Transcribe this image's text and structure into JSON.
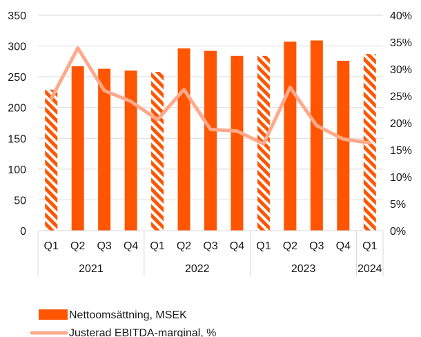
{
  "chart_data": {
    "type": "bar",
    "title": "",
    "x": [
      {
        "quarter": "Q1",
        "year": "2021"
      },
      {
        "quarter": "Q2",
        "year": "2021"
      },
      {
        "quarter": "Q3",
        "year": "2021"
      },
      {
        "quarter": "Q4",
        "year": "2021"
      },
      {
        "quarter": "Q1",
        "year": "2022"
      },
      {
        "quarter": "Q2",
        "year": "2022"
      },
      {
        "quarter": "Q3",
        "year": "2022"
      },
      {
        "quarter": "Q4",
        "year": "2022"
      },
      {
        "quarter": "Q1",
        "year": "2023"
      },
      {
        "quarter": "Q2",
        "year": "2023"
      },
      {
        "quarter": "Q3",
        "year": "2023"
      },
      {
        "quarter": "Q4",
        "year": "2023"
      },
      {
        "quarter": "Q1",
        "year": "2024"
      }
    ],
    "year_groups": [
      {
        "label": "2021",
        "count": 4
      },
      {
        "label": "2022",
        "count": 4
      },
      {
        "label": "2023",
        "count": 4
      },
      {
        "label": "2024",
        "count": 1
      }
    ],
    "series": [
      {
        "name": "Nettoomsättning, MSEK",
        "type": "bar",
        "axis": "left",
        "color": "#ff5500",
        "hatched": [
          true,
          false,
          false,
          false,
          true,
          false,
          false,
          false,
          true,
          false,
          false,
          false,
          true
        ],
        "values": [
          229,
          267,
          263,
          260,
          258,
          296,
          292,
          284,
          284,
          307,
          309,
          276,
          287
        ]
      },
      {
        "name": "Justerad EBITDA-marginal, %",
        "type": "line",
        "axis": "right",
        "color": "#ffa98a",
        "values": [
          24.5,
          33.9,
          26.0,
          24.0,
          20.6,
          26.2,
          18.8,
          18.5,
          16.1,
          26.6,
          19.5,
          17.0,
          16.3
        ]
      }
    ],
    "y_left": {
      "min": 0,
      "max": 350,
      "step": 50,
      "ticks": [
        "0",
        "50",
        "100",
        "150",
        "200",
        "250",
        "300",
        "350"
      ]
    },
    "y_right": {
      "min": 0,
      "max": 40,
      "step": 5,
      "ticks": [
        "0%",
        "5%",
        "10%",
        "15%",
        "20%",
        "25%",
        "30%",
        "35%",
        "40%"
      ]
    },
    "grid": true,
    "legend_position": "bottom-left"
  }
}
